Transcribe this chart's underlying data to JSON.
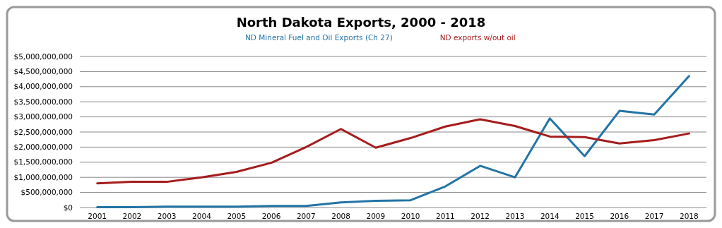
{
  "chart_data": {
    "type": "line",
    "title": "North Dakota Exports, 2000 - 2018",
    "categories": [
      "2001",
      "2002",
      "2003",
      "2004",
      "2005",
      "2006",
      "2007",
      "2008",
      "2009",
      "2010",
      "2011",
      "2012",
      "2013",
      "2014",
      "2015",
      "2016",
      "2017",
      "2018"
    ],
    "series": [
      {
        "name": "ND Mineral Fuel and Oil Exports (Ch 27)",
        "color": "#2274a5",
        "values": [
          10000000,
          10000000,
          30000000,
          30000000,
          30000000,
          50000000,
          50000000,
          170000000,
          220000000,
          240000000,
          700000000,
          1380000000,
          1000000000,
          2950000000,
          1700000000,
          3200000000,
          3080000000,
          4350000000
        ]
      },
      {
        "name": "ND exports w/out  oil",
        "color": "#a51c1c",
        "values": [
          800000000,
          850000000,
          850000000,
          1000000000,
          1180000000,
          1480000000,
          2000000000,
          2600000000,
          1980000000,
          2300000000,
          2680000000,
          2920000000,
          2700000000,
          2350000000,
          2330000000,
          2120000000,
          2230000000,
          2450000000
        ]
      }
    ],
    "ylim": [
      0,
      5000000000
    ],
    "yticks": [
      {
        "value": 0,
        "label": "$0"
      },
      {
        "value": 500000000,
        "label": "$500,000,000"
      },
      {
        "value": 1000000000,
        "label": "$1,000,000,000"
      },
      {
        "value": 1500000000,
        "label": "$1,500,000,000"
      },
      {
        "value": 2000000000,
        "label": "$2,000,000,000"
      },
      {
        "value": 2500000000,
        "label": "$2,500,000,000"
      },
      {
        "value": 3000000000,
        "label": "$3,000,000,000"
      },
      {
        "value": 3500000000,
        "label": "$3,500,000,000"
      },
      {
        "value": 4000000000,
        "label": "$4,000,000,000"
      },
      {
        "value": 4500000000,
        "label": "$4,500,000,000"
      },
      {
        "value": 5000000000,
        "label": "$5,000,000,000"
      }
    ],
    "grid": "y",
    "legend": "top",
    "marker": "none",
    "line_style": "solid"
  }
}
